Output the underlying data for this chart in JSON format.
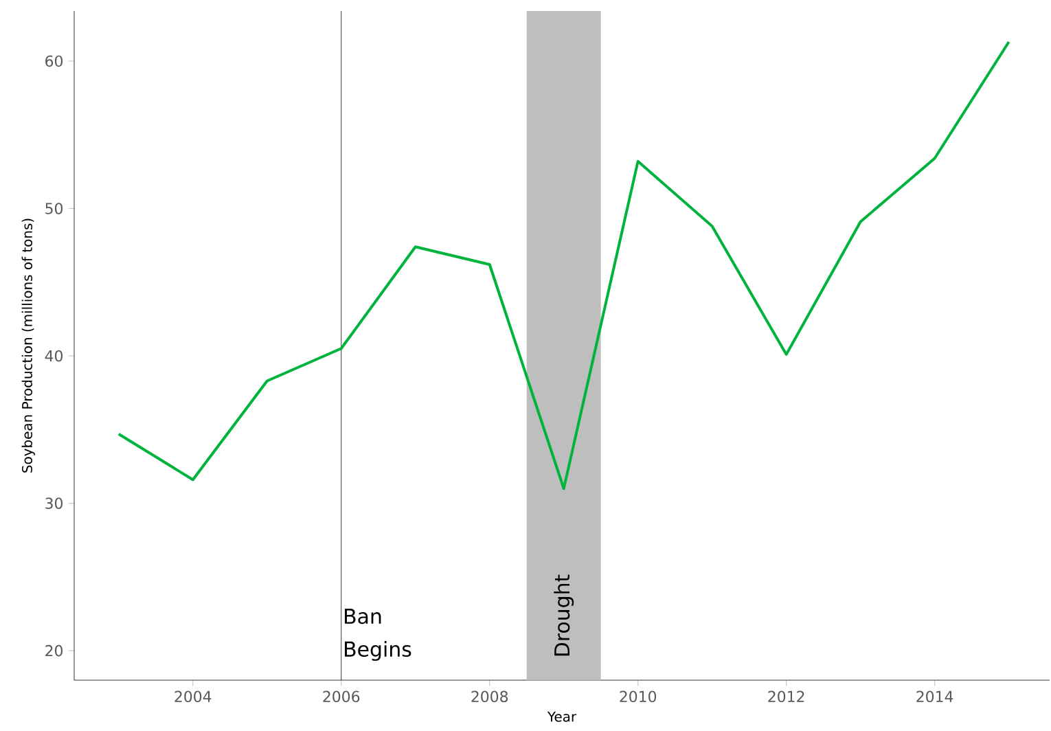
{
  "chart_data": {
    "type": "line",
    "xlabel": "Year",
    "ylabel": "Soybean Production (millions of tons)",
    "x": [
      2003,
      2004,
      2005,
      2006,
      2007,
      2008,
      2009,
      2010,
      2011,
      2012,
      2013,
      2014,
      2015
    ],
    "series": [
      {
        "color": "#00b33c",
        "values": [
          34.7,
          31.6,
          38.3,
          40.5,
          47.4,
          46.2,
          31.0,
          53.2,
          48.8,
          40.1,
          49.1,
          53.4,
          61.3
        ]
      }
    ],
    "xlim": [
      2002.4,
      2015.55
    ],
    "ylim": [
      18.0,
      63.4
    ],
    "xticks": [
      2004,
      2006,
      2008,
      2010,
      2012,
      2014
    ],
    "yticks": [
      20,
      30,
      40,
      50,
      60
    ],
    "ref_lines": [
      {
        "axis": "x",
        "value": 2006,
        "label": "Ban Begins",
        "color": "#000000"
      }
    ],
    "bands": [
      {
        "axis": "x",
        "from": 2008.5,
        "to": 2009.5,
        "label": "Drought",
        "color": "#bebebe"
      }
    ],
    "grid": false,
    "marker": "none",
    "line_style": "solid"
  }
}
